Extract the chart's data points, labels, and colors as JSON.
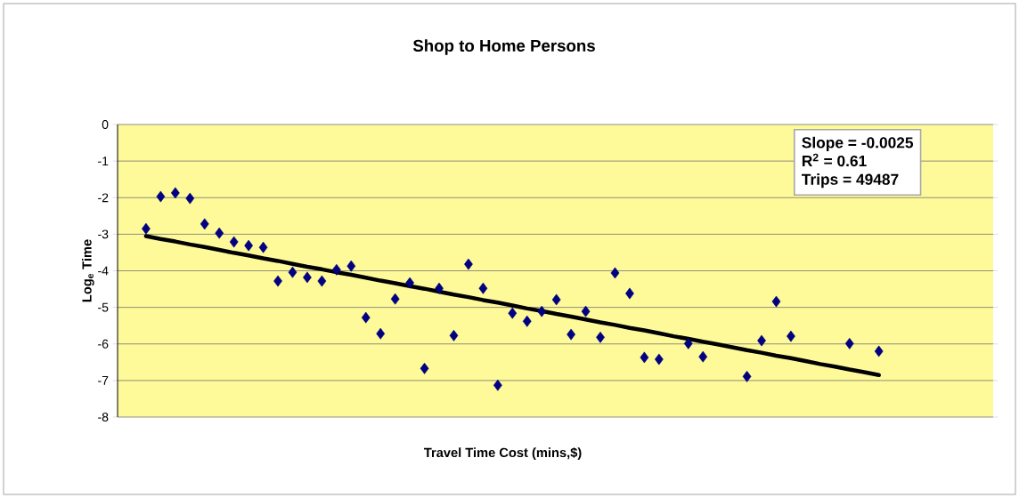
{
  "chart_data": {
    "type": "scatter",
    "title": "Shop to Home Persons",
    "xlabel": "Travel Time Cost (mins,$)",
    "ylabel": "Log$_{e}$ Time",
    "annotations": [
      "Slope = -0.0025",
      "R$^{2}$ = 0.61",
      "Trips = 49487"
    ],
    "categories": [
      null,
      null,
      null,
      null,
      null,
      null,
      null,
      null,
      null,
      null,
      null,
      null,
      null,
      null,
      null,
      null,
      null,
      null,
      null,
      null,
      null,
      null,
      null,
      null,
      null,
      null,
      null,
      null,
      null,
      null,
      null,
      null,
      null,
      null,
      null,
      null,
      null,
      null,
      null,
      null,
      null,
      null,
      null,
      null,
      null,
      null,
      null,
      null,
      null,
      null,
      null
    ],
    "ylim": [
      -8,
      0
    ],
    "yticks": [
      0,
      -1,
      -2,
      -3,
      -4,
      -5,
      -6,
      -7,
      -8
    ],
    "grid": "y",
    "tick_labels": "y",
    "series": [
      {
        "color": "#000080",
        "marker": "diamond",
        "values": [
          -2.85,
          -1.97,
          -1.87,
          -2.02,
          -2.72,
          -2.97,
          -3.21,
          -3.31,
          -3.36,
          -4.28,
          -4.04,
          -4.18,
          -4.28,
          -3.97,
          -3.87,
          -5.28,
          -5.72,
          -4.77,
          -4.33,
          -6.67,
          -4.48,
          -5.77,
          -3.82,
          -4.48,
          -7.13,
          -5.16,
          -5.38,
          -5.11,
          -4.79,
          -5.74,
          -5.11,
          -5.82,
          -4.06,
          -4.62,
          -6.37,
          -6.42,
          null,
          -5.99,
          -6.35,
          null,
          null,
          -6.89,
          -5.91,
          -4.84,
          -5.79,
          null,
          null,
          null,
          -5.99,
          null,
          -6.2
        ]
      },
      {
        "type": "line",
        "color": "#000000",
        "marker": "none",
        "values": [
          -3.05,
          -3.13,
          -3.2,
          -3.28,
          -3.35,
          -3.43,
          -3.51,
          -3.58,
          -3.66,
          -3.73,
          -3.81,
          -3.89,
          -3.96,
          -4.04,
          -4.11,
          -4.19,
          -4.27,
          -4.34,
          -4.42,
          -4.49,
          -4.57,
          -4.65,
          -4.72,
          -4.8,
          -4.87,
          -4.95,
          -5.03,
          -5.1,
          -5.18,
          -5.25,
          -5.33,
          -5.41,
          -5.48,
          -5.56,
          -5.63,
          -5.71,
          -5.79,
          -5.86,
          -5.94,
          -6.01,
          -6.09,
          -6.17,
          -6.24,
          -6.32,
          -6.39,
          -6.47,
          -6.55,
          -6.62,
          -6.7,
          -6.77,
          -6.85
        ]
      }
    ]
  }
}
